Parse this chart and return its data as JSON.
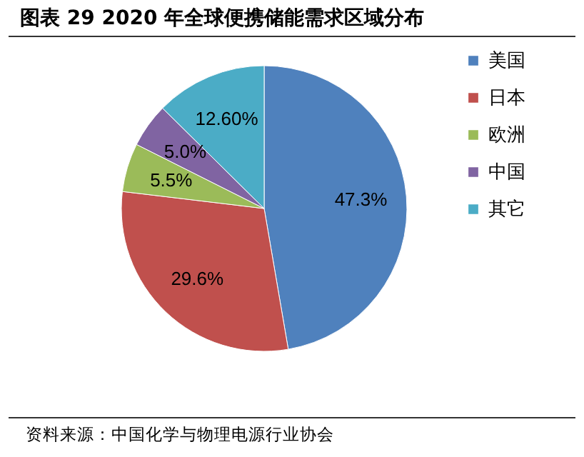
{
  "chart_data": {
    "type": "pie",
    "title": "图表 29  2020 年全球便携储能需求区域分布",
    "categories": [
      "美国",
      "日本",
      "欧洲",
      "中国",
      "其它"
    ],
    "values": [
      47.3,
      29.6,
      5.5,
      5.0,
      12.6
    ],
    "value_labels": [
      "47.3%",
      "29.6%",
      "5.5%",
      "5.0%",
      "12.60%"
    ],
    "colors": [
      "#4f81bd",
      "#c0504d",
      "#9bbb59",
      "#8064a2",
      "#4bacc6"
    ],
    "legend": "right",
    "annotations": [
      "资料来源：中国化学与物理电源行业协会"
    ]
  }
}
